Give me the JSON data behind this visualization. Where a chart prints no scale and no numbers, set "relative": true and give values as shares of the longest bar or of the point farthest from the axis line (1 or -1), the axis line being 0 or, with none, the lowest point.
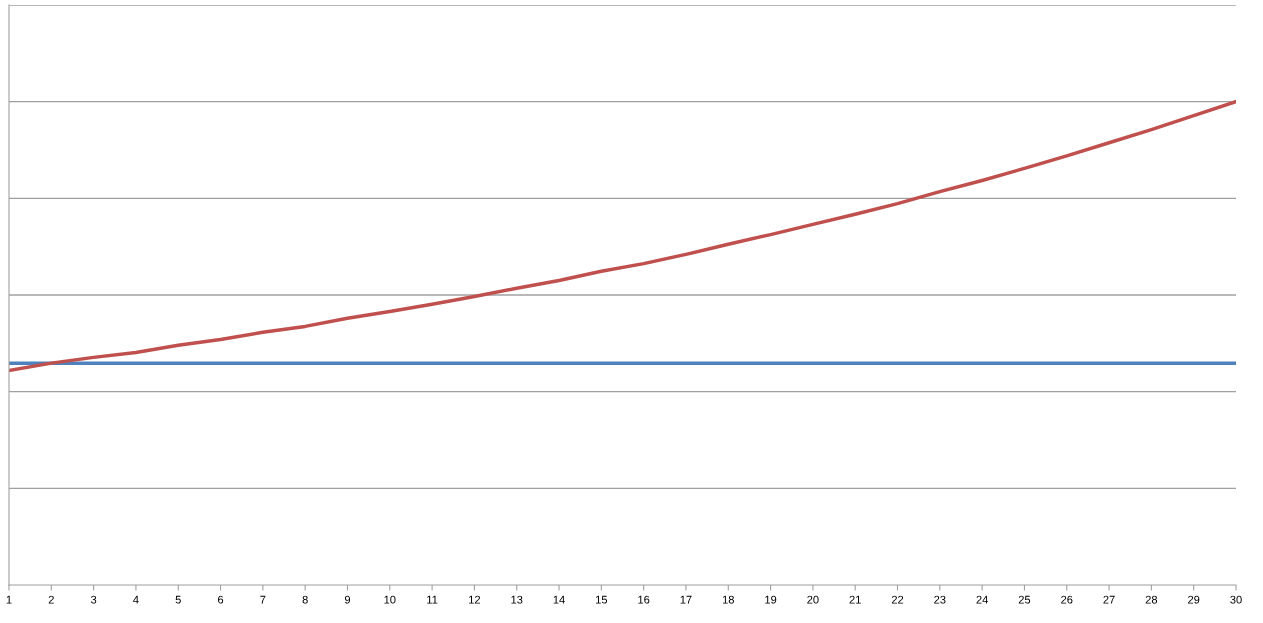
{
  "chart_data": {
    "type": "line",
    "relative": true,
    "grid": "y",
    "marker": "none",
    "line_style": "solid",
    "x": [
      1,
      2,
      3,
      4,
      5,
      6,
      7,
      8,
      9,
      10,
      11,
      12,
      13,
      14,
      15,
      16,
      17,
      18,
      19,
      20,
      21,
      22,
      23,
      24,
      25,
      26,
      27,
      28,
      29,
      30
    ],
    "xlim": [
      1,
      30
    ],
    "xticks": [
      1,
      2,
      3,
      4,
      5,
      6,
      7,
      8,
      9,
      10,
      11,
      12,
      13,
      14,
      15,
      16,
      17,
      18,
      19,
      20,
      21,
      22,
      23,
      24,
      25,
      26,
      27,
      28,
      29,
      30
    ],
    "series": [
      {
        "color": "#4f81bd",
        "values": [
          0.459,
          0.459,
          0.459,
          0.459,
          0.459,
          0.459,
          0.459,
          0.459,
          0.459,
          0.459,
          0.459,
          0.459,
          0.459,
          0.459,
          0.459,
          0.459,
          0.459,
          0.459,
          0.459,
          0.459,
          0.459,
          0.459,
          0.459,
          0.459,
          0.459,
          0.459,
          0.459,
          0.459,
          0.459,
          0.459
        ]
      },
      {
        "color": "#c0504d",
        "values": [
          0.444,
          0.459,
          0.471,
          0.481,
          0.496,
          0.508,
          0.523,
          0.535,
          0.552,
          0.566,
          0.581,
          0.597,
          0.614,
          0.63,
          0.649,
          0.665,
          0.684,
          0.705,
          0.725,
          0.746,
          0.767,
          0.789,
          0.814,
          0.837,
          0.862,
          0.888,
          0.915,
          0.942,
          0.971,
          1.0
        ]
      }
    ]
  }
}
